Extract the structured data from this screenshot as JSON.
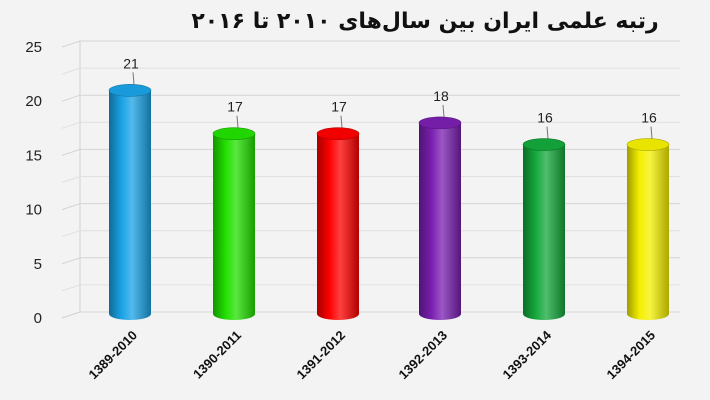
{
  "chart_data": {
    "type": "bar",
    "title": "رتبه علمی ایران بین سال‌های ۲۰۱۰ تا ۲۰۱۶",
    "categories": [
      "1389-2010",
      "1390-2011",
      "1391-2012",
      "1392-2013",
      "1393-2014",
      "1394-2015"
    ],
    "values": [
      21,
      17,
      17,
      18,
      16,
      16
    ],
    "colors": [
      "#1aa3e6",
      "#22e000",
      "#ff0000",
      "#7a1fb0",
      "#14a83c",
      "#f4f000"
    ],
    "ylim": [
      0,
      25
    ],
    "yticks": [
      0,
      5,
      10,
      15,
      20,
      25
    ],
    "grid": true,
    "style": "3d-cylinder"
  }
}
